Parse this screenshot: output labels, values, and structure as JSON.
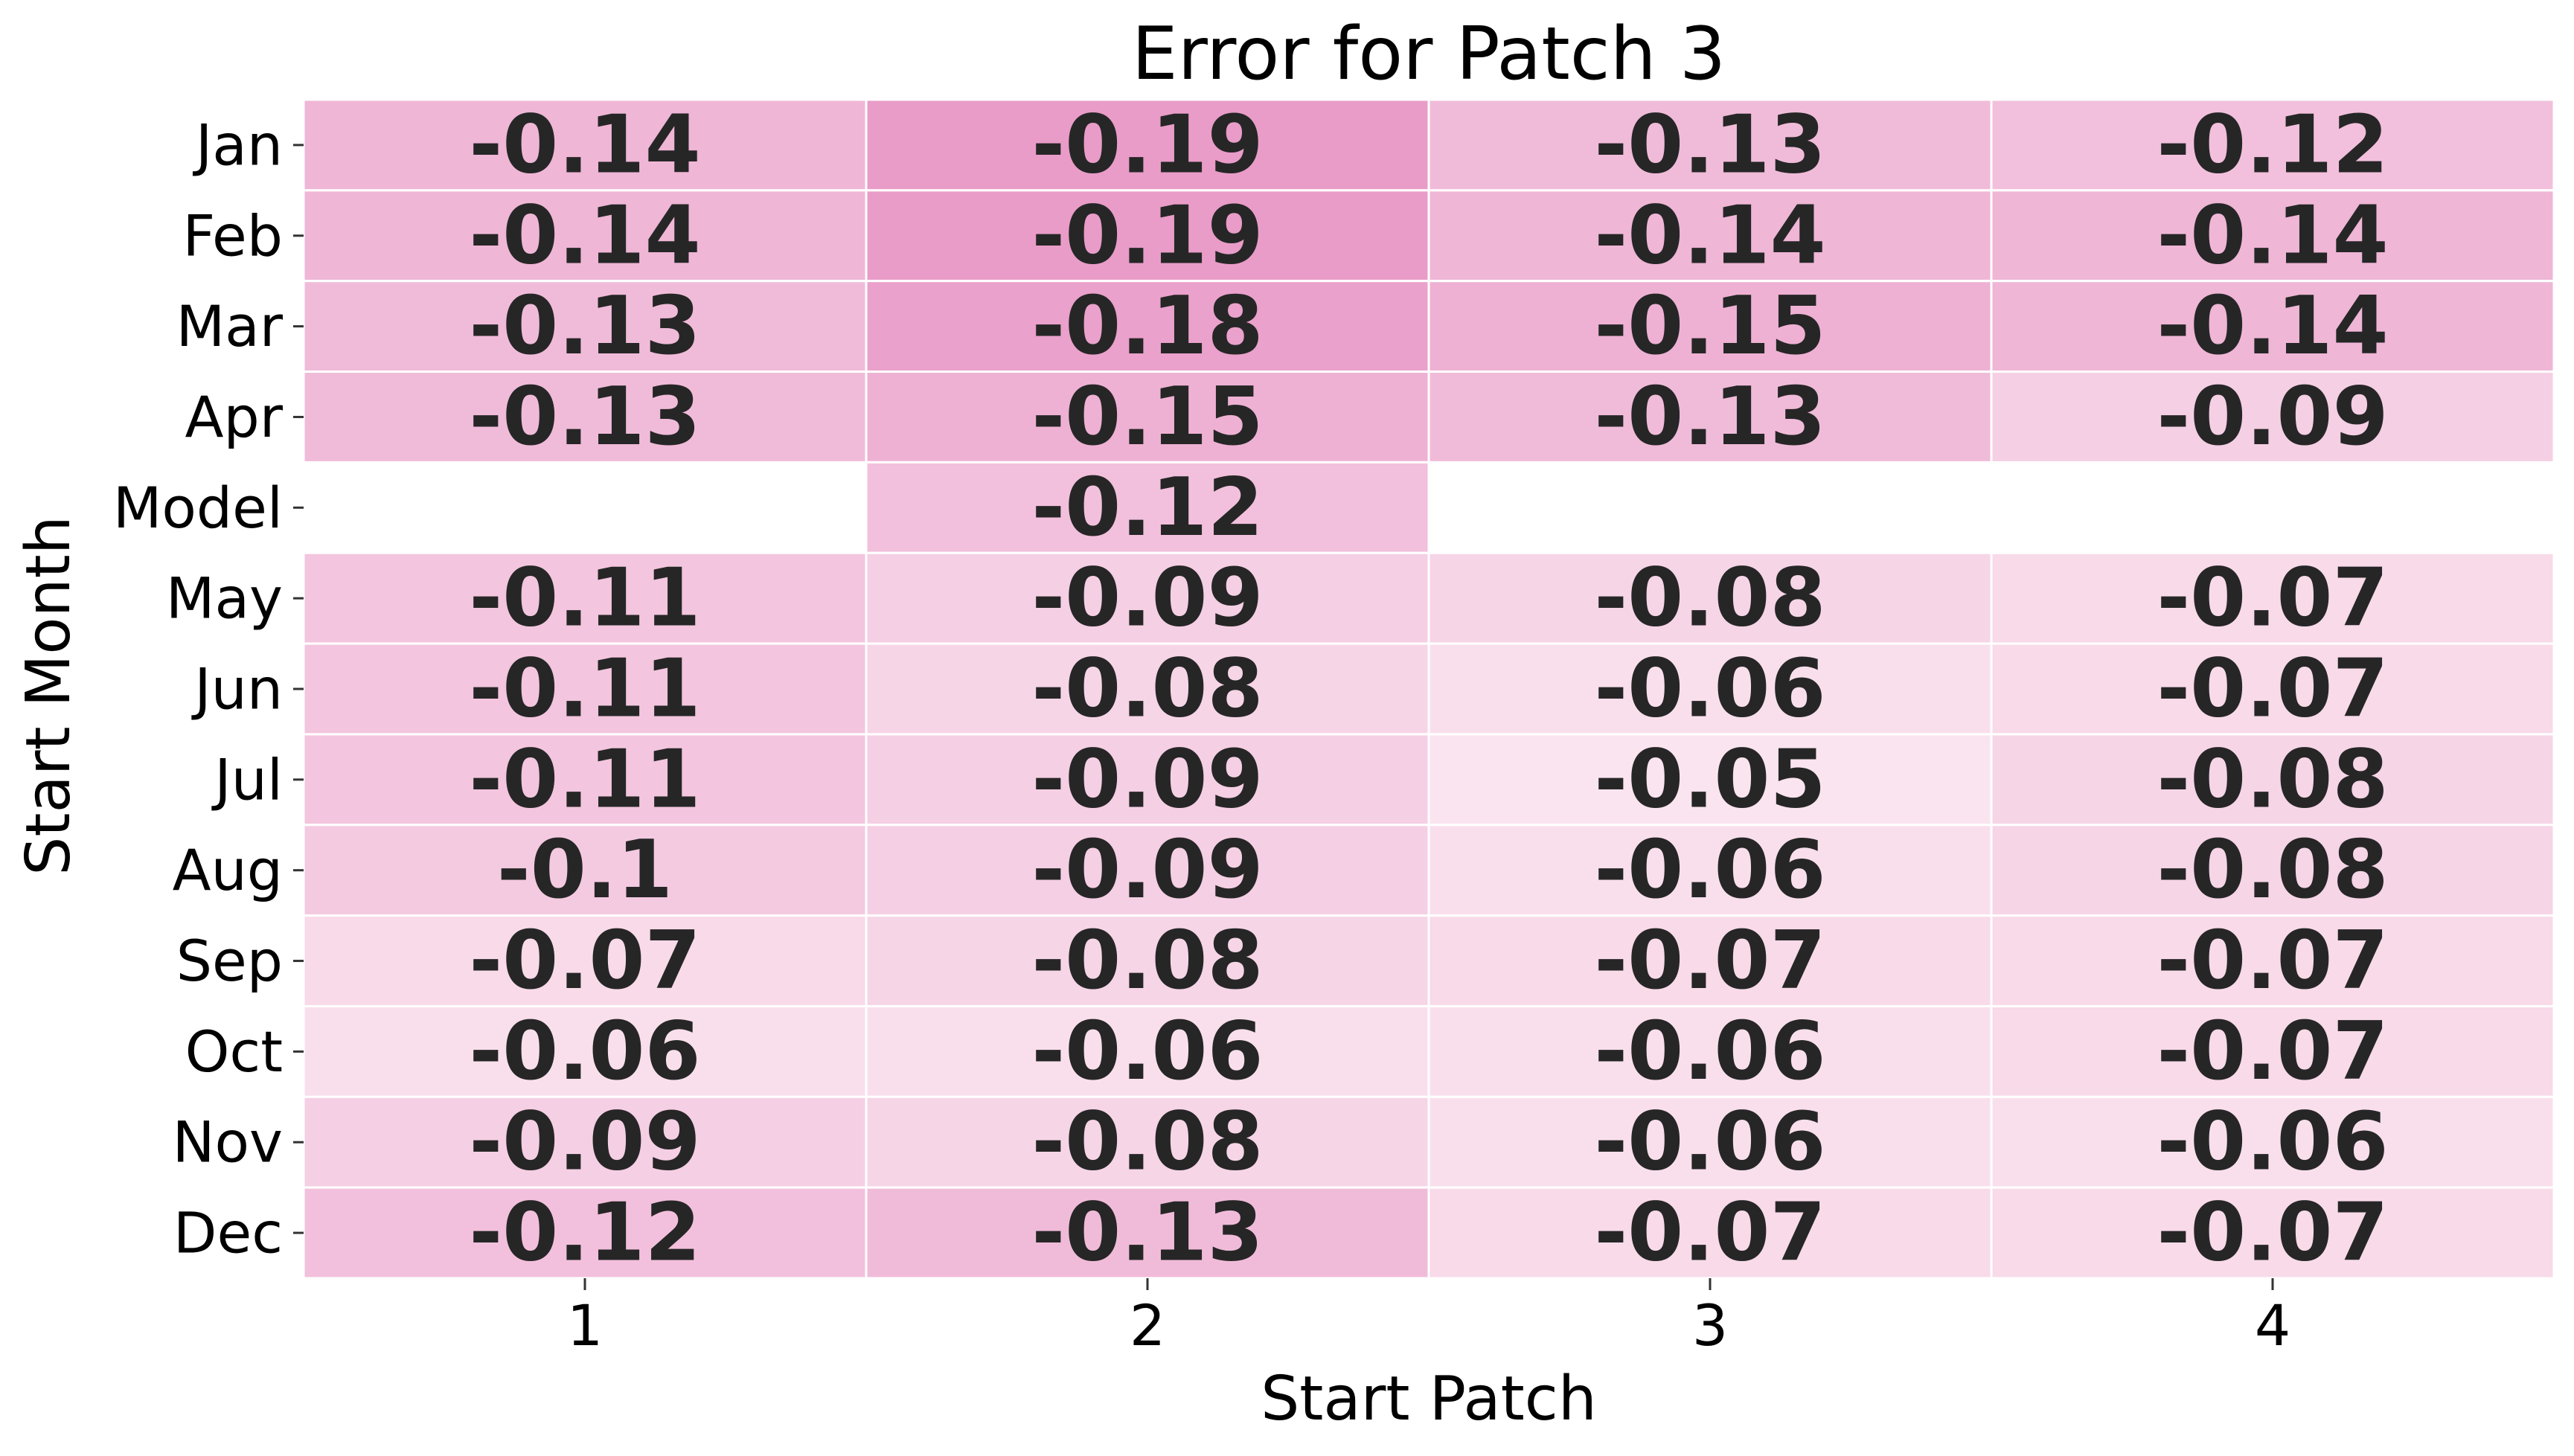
{
  "chart_data": {
    "type": "heatmap",
    "title": "Error for Patch 3",
    "xlabel": "Start Patch",
    "ylabel": "Start Month",
    "x_categories": [
      "1",
      "2",
      "3",
      "4"
    ],
    "y_categories": [
      "Jan",
      "Feb",
      "Mar",
      "Apr",
      "Model",
      "May",
      "Jun",
      "Jul",
      "Aug",
      "Sep",
      "Oct",
      "Nov",
      "Dec"
    ],
    "values": [
      [
        -0.14,
        -0.19,
        -0.13,
        -0.12
      ],
      [
        -0.14,
        -0.19,
        -0.14,
        -0.14
      ],
      [
        -0.13,
        -0.18,
        -0.15,
        -0.14
      ],
      [
        -0.13,
        -0.15,
        -0.13,
        -0.09
      ],
      [
        null,
        -0.12,
        null,
        null
      ],
      [
        -0.11,
        -0.09,
        -0.08,
        -0.07
      ],
      [
        -0.11,
        -0.08,
        -0.06,
        -0.07
      ],
      [
        -0.11,
        -0.09,
        -0.05,
        -0.08
      ],
      [
        -0.1,
        -0.09,
        -0.06,
        -0.08
      ],
      [
        -0.07,
        -0.08,
        -0.07,
        -0.07
      ],
      [
        -0.06,
        -0.06,
        -0.06,
        -0.07
      ],
      [
        -0.09,
        -0.08,
        -0.06,
        -0.06
      ],
      [
        -0.12,
        -0.13,
        -0.07,
        -0.07
      ]
    ],
    "value_labels": [
      [
        "-0.14",
        "-0.19",
        "-0.13",
        "-0.12"
      ],
      [
        "-0.14",
        "-0.19",
        "-0.14",
        "-0.14"
      ],
      [
        "-0.13",
        "-0.18",
        "-0.15",
        "-0.14"
      ],
      [
        "-0.13",
        "-0.15",
        "-0.13",
        "-0.09"
      ],
      [
        null,
        "-0.12",
        null,
        null
      ],
      [
        "-0.11",
        "-0.09",
        "-0.08",
        "-0.07"
      ],
      [
        "-0.11",
        "-0.08",
        "-0.06",
        "-0.07"
      ],
      [
        "-0.11",
        "-0.09",
        "-0.05",
        "-0.08"
      ],
      [
        "-0.1",
        "-0.09",
        "-0.06",
        "-0.08"
      ],
      [
        "-0.07",
        "-0.08",
        "-0.07",
        "-0.07"
      ],
      [
        "-0.06",
        "-0.06",
        "-0.06",
        "-0.07"
      ],
      [
        "-0.09",
        "-0.08",
        "-0.06",
        "-0.06"
      ],
      [
        "-0.12",
        "-0.13",
        "-0.07",
        "-0.07"
      ]
    ],
    "color_light": "#fae4ef",
    "color_dark": "#e99cc8",
    "missing_color": "#ffffff",
    "grid_color": "#ffffff",
    "colorbar": false
  }
}
